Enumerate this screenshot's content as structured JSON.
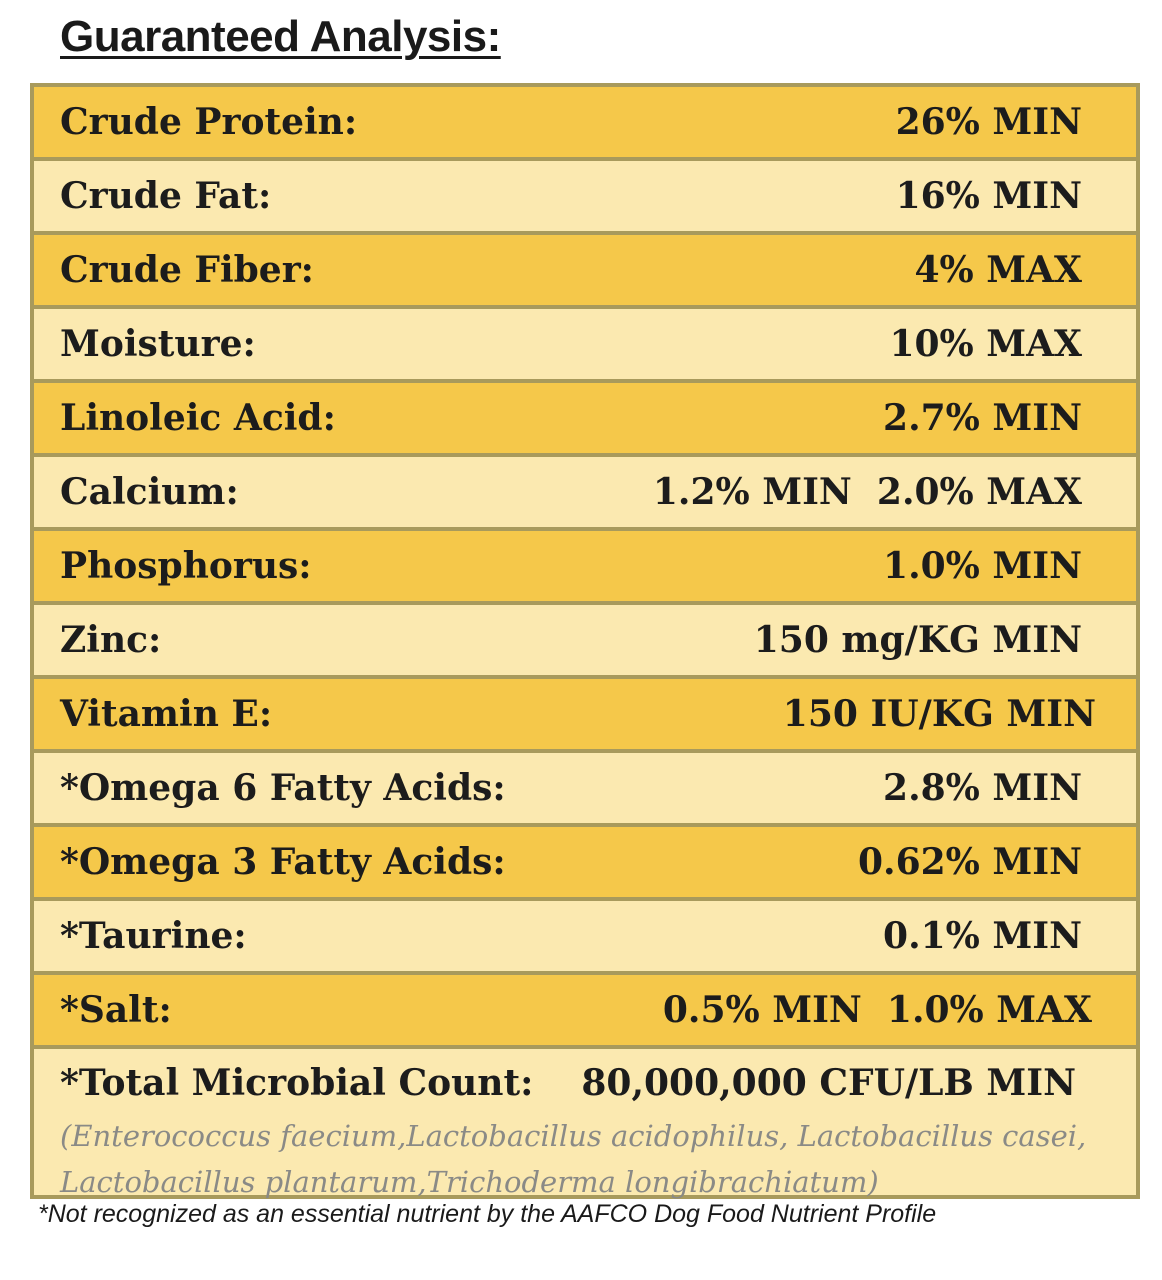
{
  "title": "Guaranteed Analysis:",
  "rows": [
    {
      "label": "Crude Protein:",
      "value": "26% MIN"
    },
    {
      "label": "Crude Fat:",
      "value": "16% MIN"
    },
    {
      "label": "Crude Fiber:",
      "value": "4% MAX"
    },
    {
      "label": "Moisture:",
      "value": "10% MAX"
    },
    {
      "label": "Linoleic Acid:",
      "value": "2.7% MIN"
    },
    {
      "label": "Calcium:",
      "value": "1.2% MIN  2.0% MAX"
    },
    {
      "label": "Phosphorus:",
      "value": "1.0% MIN"
    },
    {
      "label": "Zinc:",
      "value": "150 mg/KG MIN"
    },
    {
      "label": "Vitamin E:",
      "value": "150 IU/KG MIN"
    },
    {
      "label": "*Omega 6 Fatty Acids:",
      "value": "2.8% MIN"
    },
    {
      "label": "*Omega 3 Fatty Acids:",
      "value": "0.62% MIN"
    },
    {
      "label": "*Taurine:",
      "value": "0.1% MIN"
    },
    {
      "label": "*Salt:",
      "value": "0.5% MIN  1.0% MAX"
    },
    {
      "label": "*Total Microbial Count:",
      "value": "80,000,000 CFU/LB MIN"
    }
  ],
  "organisms": "(Enterococcus faecium,Lactobacillus acidophilus, Lactobacillus casei, Lactobacillus plantarum,Trichoderma longibrachiatum)",
  "footnote": "*Not recognized as an essential nutrient by the AAFCO Dog Food Nutrient Profile",
  "colors": {
    "row_dark": "#f5c84a",
    "row_light": "#fbe9b0",
    "border": "#a89a5c",
    "text": "#1c1c1c",
    "organism_text": "#8a8a86"
  }
}
